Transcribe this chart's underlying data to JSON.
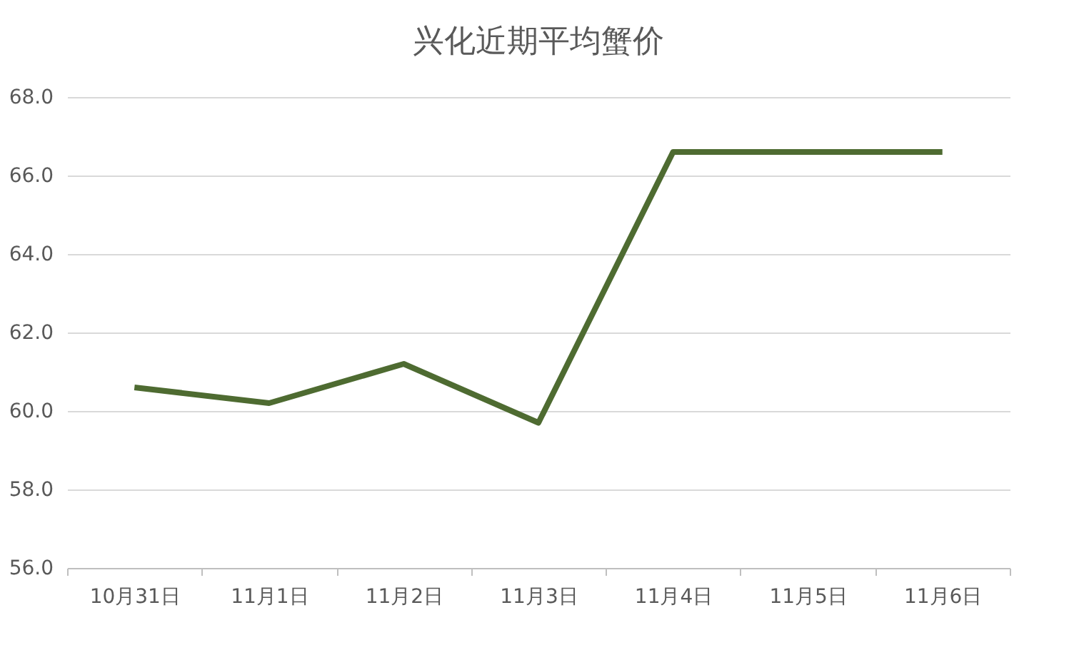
{
  "chart_data": {
    "type": "line",
    "title": "兴化近期平均蟹价",
    "categories": [
      "10月31日",
      "11月1日",
      "11月2日",
      "11月3日",
      "11月4日",
      "11月5日",
      "11月6日"
    ],
    "series": [
      {
        "color": "#4e6b31",
        "values": [
          60.6,
          60.2,
          61.2,
          59.7,
          66.6,
          66.6,
          66.6
        ]
      }
    ],
    "ylim": [
      56,
      68
    ],
    "yticks": [
      {
        "value": 56,
        "label": "56.0"
      },
      {
        "value": 58,
        "label": "58.0"
      },
      {
        "value": 60,
        "label": "60.0"
      },
      {
        "value": 62,
        "label": "62.0"
      },
      {
        "value": 64,
        "label": "64.0"
      },
      {
        "value": 66,
        "label": "66.0"
      },
      {
        "value": 68,
        "label": "68.0"
      }
    ],
    "grid": "y",
    "legend": false,
    "marker": "none",
    "line_style": "solid"
  }
}
